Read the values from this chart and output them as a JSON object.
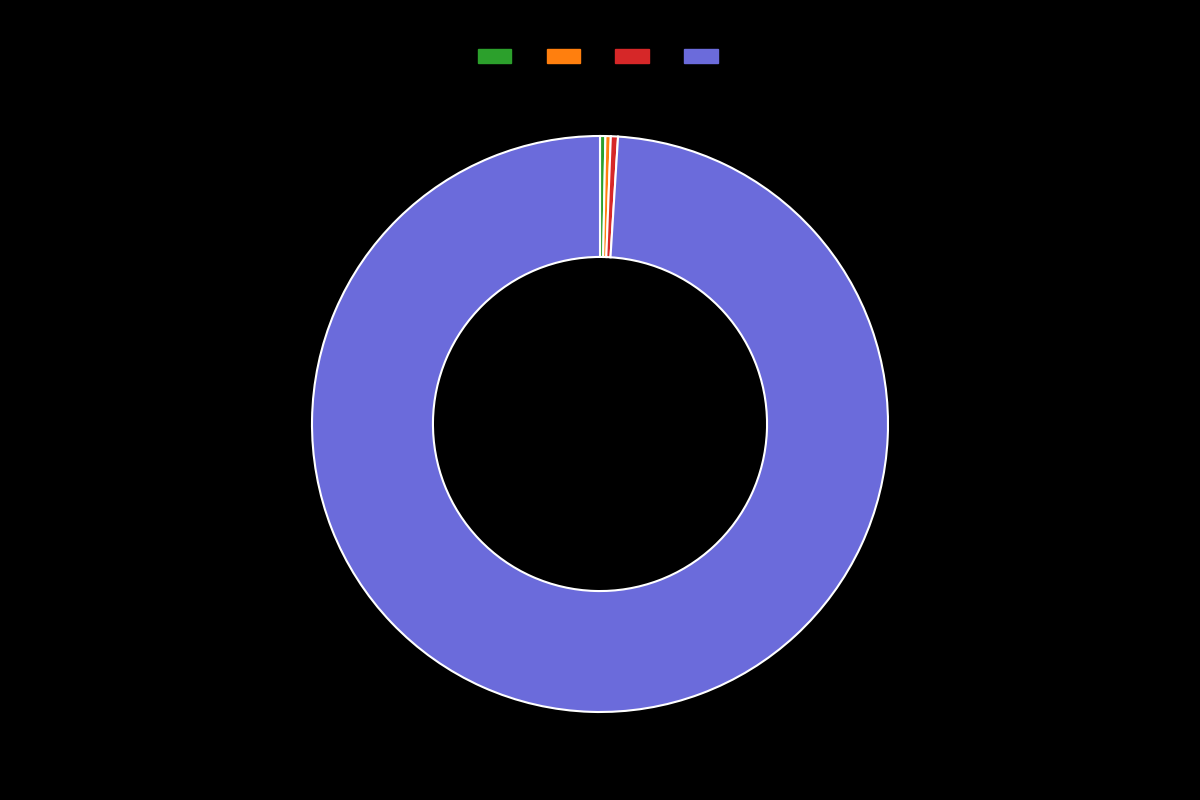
{
  "slices": [
    0.3,
    0.3,
    0.4,
    99.0
  ],
  "colors": [
    "#2ca02c",
    "#ff7f0e",
    "#d62728",
    "#6b6bdb"
  ],
  "legend_labels": [
    "",
    "",
    "",
    ""
  ],
  "background_color": "#000000",
  "donut_width": 0.42,
  "startangle": 90,
  "wedge_edge_color": "#ffffff",
  "wedge_edge_width": 1.5,
  "figsize": [
    12.0,
    8.0
  ],
  "dpi": 100
}
